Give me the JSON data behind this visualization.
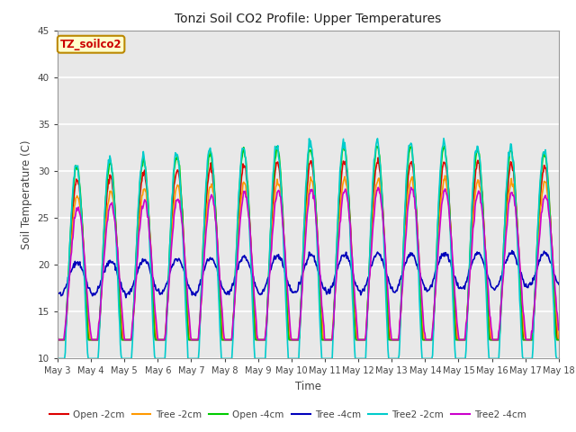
{
  "title": "Tonzi Soil CO2 Profile: Upper Temperatures",
  "xlabel": "Time",
  "ylabel": "Soil Temperature (C)",
  "ylim": [
    10,
    45
  ],
  "xlim_days": 15,
  "xtick_labels": [
    "May 3",
    "May 4",
    "May 5",
    "May 6",
    "May 7",
    "May 8",
    "May 9",
    "May 10",
    "May 11",
    "May 12",
    "May 13",
    "May 14",
    "May 15",
    "May 16",
    "May 17",
    "May 18"
  ],
  "legend_label": "TZ_soilco2",
  "legend_text_color": "#cc0000",
  "legend_box_color": "#ffffcc",
  "legend_box_edge": "#bb8800",
  "series_order": [
    "Open -2cm",
    "Tree -2cm",
    "Open -4cm",
    "Tree -4cm",
    "Tree2 -2cm",
    "Tree2 -4cm"
  ],
  "series": {
    "Open -2cm": {
      "color": "#dd0000"
    },
    "Tree -2cm": {
      "color": "#ff9900"
    },
    "Open -4cm": {
      "color": "#00cc00"
    },
    "Tree -4cm": {
      "color": "#0000bb"
    },
    "Tree2 -2cm": {
      "color": "#00cccc"
    },
    "Tree2 -4cm": {
      "color": "#cc00cc"
    }
  },
  "lw": 1.2,
  "plot_bg_color": "#e8e8e8",
  "grid_color": "#ffffff",
  "yticks": [
    10,
    15,
    20,
    25,
    30,
    35,
    40,
    45
  ],
  "n_days": 15,
  "pts_per_day": 48
}
